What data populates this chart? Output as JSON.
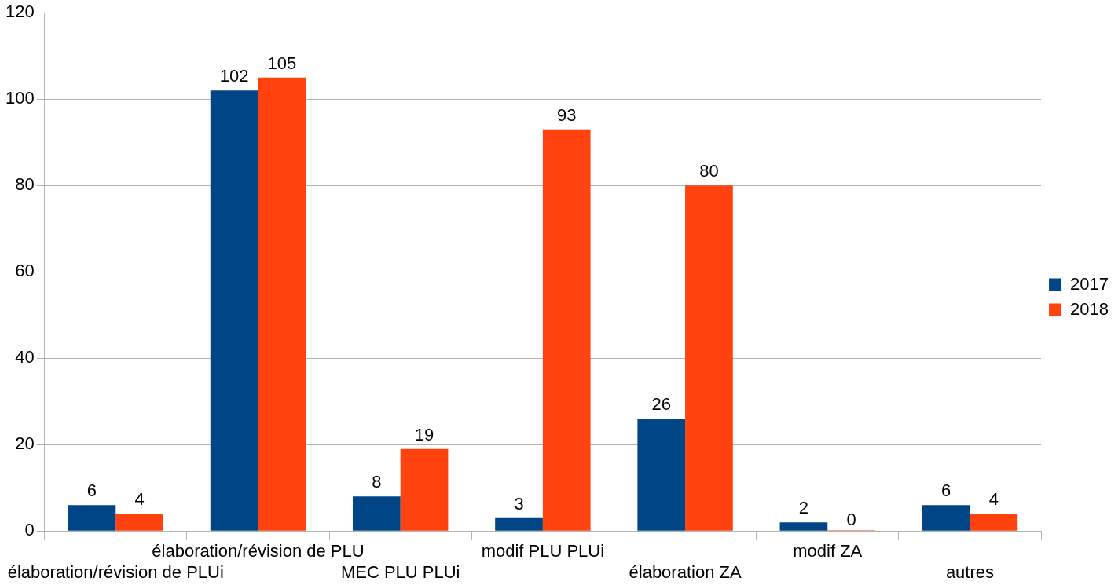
{
  "chart_data": {
    "type": "bar",
    "categories": [
      "élaboration/révision de PLUi",
      "élaboration/révision de PLU",
      "MEC PLU PLUi",
      "modif PLU PLUi",
      "élaboration ZA",
      "modif ZA",
      "autres"
    ],
    "series": [
      {
        "name": "2017",
        "color": "#004586",
        "values": [
          6,
          102,
          8,
          3,
          26,
          2,
          6
        ]
      },
      {
        "name": "2018",
        "color": "#ff420e",
        "values": [
          4,
          105,
          19,
          93,
          80,
          0,
          4
        ]
      }
    ],
    "ylim": [
      0,
      120
    ],
    "yticks": [
      0,
      20,
      40,
      60,
      80,
      100,
      120
    ],
    "grid": "y",
    "legend": "right",
    "data_labels": true
  }
}
